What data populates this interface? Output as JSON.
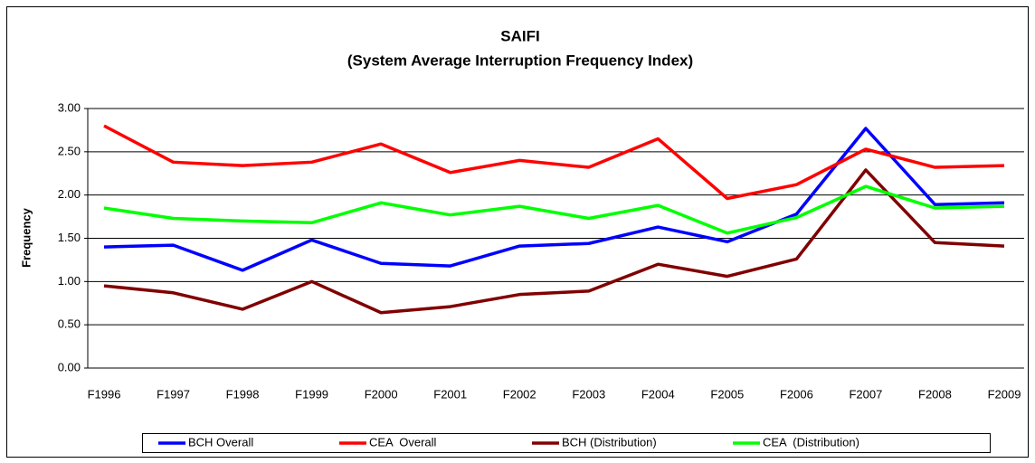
{
  "chart_data": {
    "type": "line",
    "title": "SAIFI",
    "subtitle": "(System Average Interruption Frequency Index)",
    "y_label": "Frequency",
    "categories": [
      "F1996",
      "F1997",
      "F1998",
      "F1999",
      "F2000",
      "F2001",
      "F2002",
      "F2003",
      "F2004",
      "F2005",
      "F2006",
      "F2007",
      "F2008",
      "F2009"
    ],
    "series": [
      {
        "name": "BCH Overall",
        "color": "#0000ff",
        "values": [
          1.4,
          1.42,
          1.13,
          1.48,
          1.21,
          1.18,
          1.41,
          1.44,
          1.63,
          1.46,
          1.78,
          2.77,
          1.89,
          1.91
        ]
      },
      {
        "name": "CEA  Overall",
        "color": "#ff0000",
        "values": [
          2.8,
          2.38,
          2.34,
          2.38,
          2.59,
          2.26,
          2.4,
          2.32,
          2.65,
          1.96,
          2.12,
          2.53,
          2.32,
          2.34
        ]
      },
      {
        "name": "BCH (Distribution)",
        "color": "#800000",
        "values": [
          0.95,
          0.87,
          0.68,
          1.0,
          0.64,
          0.71,
          0.85,
          0.89,
          1.2,
          1.06,
          1.26,
          2.29,
          1.45,
          1.41
        ]
      },
      {
        "name": "CEA  (Distribution)",
        "color": "#00ff00",
        "values": [
          1.85,
          1.73,
          1.7,
          1.68,
          1.91,
          1.77,
          1.87,
          1.73,
          1.88,
          1.56,
          1.74,
          2.1,
          1.85,
          1.87
        ]
      }
    ],
    "ylim": [
      0,
      3
    ],
    "yticks": [
      {
        "value": 0,
        "label": "0.00"
      },
      {
        "value": 0.5,
        "label": "0.50"
      },
      {
        "value": 1,
        "label": "1.00"
      },
      {
        "value": 1.5,
        "label": "1.50"
      },
      {
        "value": 2,
        "label": "2.00"
      },
      {
        "value": 2.5,
        "label": "2.50"
      },
      {
        "value": 3,
        "label": "3.00"
      }
    ],
    "grid": true,
    "legend": "bottom"
  }
}
